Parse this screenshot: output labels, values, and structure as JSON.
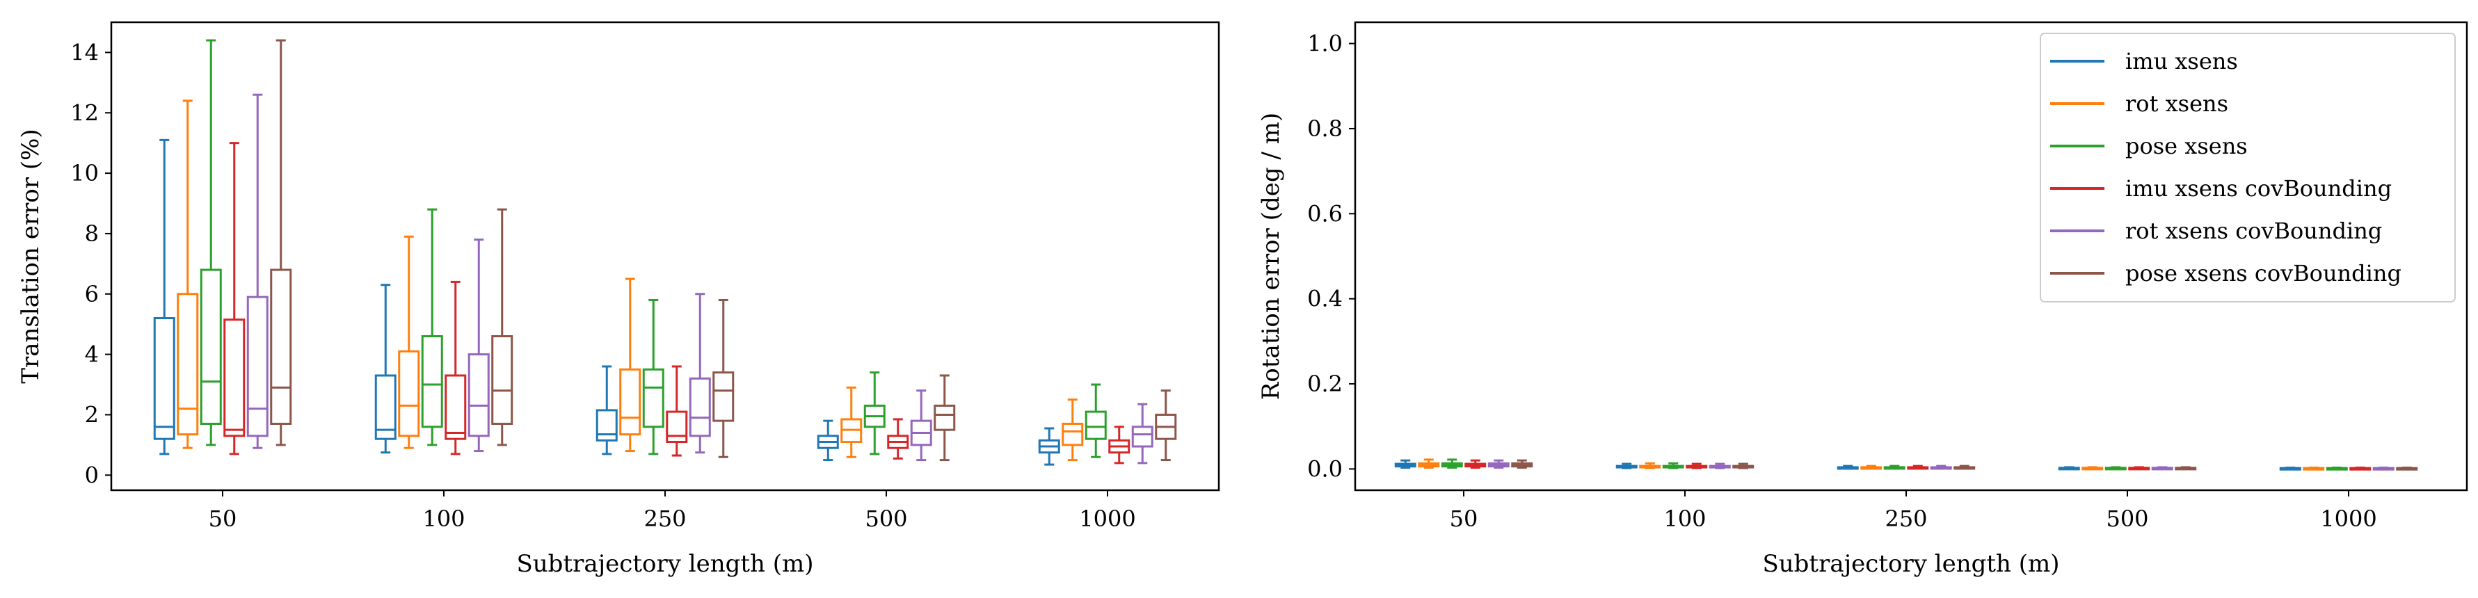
{
  "colors": {
    "imu xsens": "#1f77b4",
    "rot xsens": "#ff7f0e",
    "pose xsens": "#2ca02c",
    "imu xsens covBounding": "#d62728",
    "rot xsens covBounding": "#9467bd",
    "pose xsens covBounding": "#8c564b"
  },
  "chart_data": [
    {
      "type": "box",
      "xlabel": "Subtrajectory length (m)",
      "ylabel": "Translation error (%)",
      "ylim": [
        -0.5,
        15
      ],
      "yticks": [
        0,
        2,
        4,
        6,
        8,
        10,
        12,
        14
      ],
      "categories": [
        "50",
        "100",
        "250",
        "500",
        "1000"
      ],
      "grid": false,
      "series": [
        {
          "name": "imu xsens",
          "boxes": [
            {
              "whislo": 0.7,
              "q1": 1.2,
              "med": 1.6,
              "q3": 5.2,
              "whishi": 11.1
            },
            {
              "whislo": 0.75,
              "q1": 1.2,
              "med": 1.5,
              "q3": 3.3,
              "whishi": 6.3
            },
            {
              "whislo": 0.7,
              "q1": 1.15,
              "med": 1.35,
              "q3": 2.15,
              "whishi": 3.6
            },
            {
              "whislo": 0.5,
              "q1": 0.9,
              "med": 1.1,
              "q3": 1.3,
              "whishi": 1.8
            },
            {
              "whislo": 0.35,
              "q1": 0.75,
              "med": 0.95,
              "q3": 1.15,
              "whishi": 1.55
            }
          ]
        },
        {
          "name": "rot xsens",
          "boxes": [
            {
              "whislo": 0.9,
              "q1": 1.35,
              "med": 2.2,
              "q3": 6.0,
              "whishi": 12.4
            },
            {
              "whislo": 0.9,
              "q1": 1.3,
              "med": 2.3,
              "q3": 4.1,
              "whishi": 7.9
            },
            {
              "whislo": 0.8,
              "q1": 1.35,
              "med": 1.9,
              "q3": 3.5,
              "whishi": 6.5
            },
            {
              "whislo": 0.6,
              "q1": 1.1,
              "med": 1.5,
              "q3": 1.85,
              "whishi": 2.9
            },
            {
              "whislo": 0.5,
              "q1": 1.0,
              "med": 1.45,
              "q3": 1.7,
              "whishi": 2.5
            }
          ]
        },
        {
          "name": "pose xsens",
          "boxes": [
            {
              "whislo": 1.0,
              "q1": 1.7,
              "med": 3.1,
              "q3": 6.8,
              "whishi": 14.4
            },
            {
              "whislo": 1.0,
              "q1": 1.6,
              "med": 3.0,
              "q3": 4.6,
              "whishi": 8.8
            },
            {
              "whislo": 0.7,
              "q1": 1.6,
              "med": 2.9,
              "q3": 3.5,
              "whishi": 5.8
            },
            {
              "whislo": 0.7,
              "q1": 1.6,
              "med": 1.95,
              "q3": 2.3,
              "whishi": 3.4
            },
            {
              "whislo": 0.6,
              "q1": 1.2,
              "med": 1.6,
              "q3": 2.1,
              "whishi": 3.0
            }
          ]
        },
        {
          "name": "imu xsens covBounding",
          "boxes": [
            {
              "whislo": 0.7,
              "q1": 1.3,
              "med": 1.5,
              "q3": 5.15,
              "whishi": 11.0
            },
            {
              "whislo": 0.7,
              "q1": 1.2,
              "med": 1.4,
              "q3": 3.3,
              "whishi": 6.4
            },
            {
              "whislo": 0.65,
              "q1": 1.1,
              "med": 1.3,
              "q3": 2.1,
              "whishi": 3.6
            },
            {
              "whislo": 0.55,
              "q1": 0.9,
              "med": 1.1,
              "q3": 1.3,
              "whishi": 1.85
            },
            {
              "whislo": 0.4,
              "q1": 0.75,
              "med": 0.95,
              "q3": 1.15,
              "whishi": 1.6
            }
          ]
        },
        {
          "name": "rot xsens covBounding",
          "boxes": [
            {
              "whislo": 0.9,
              "q1": 1.3,
              "med": 2.2,
              "q3": 5.9,
              "whishi": 12.6
            },
            {
              "whislo": 0.8,
              "q1": 1.3,
              "med": 2.3,
              "q3": 4.0,
              "whishi": 7.8
            },
            {
              "whislo": 0.75,
              "q1": 1.3,
              "med": 1.9,
              "q3": 3.2,
              "whishi": 6.0
            },
            {
              "whislo": 0.5,
              "q1": 1.0,
              "med": 1.4,
              "q3": 1.8,
              "whishi": 2.8
            },
            {
              "whislo": 0.4,
              "q1": 0.95,
              "med": 1.35,
              "q3": 1.6,
              "whishi": 2.35
            }
          ]
        },
        {
          "name": "pose xsens covBounding",
          "boxes": [
            {
              "whislo": 1.0,
              "q1": 1.7,
              "med": 2.9,
              "q3": 6.8,
              "whishi": 14.4
            },
            {
              "whislo": 1.0,
              "q1": 1.7,
              "med": 2.8,
              "q3": 4.6,
              "whishi": 8.8
            },
            {
              "whislo": 0.6,
              "q1": 1.8,
              "med": 2.8,
              "q3": 3.4,
              "whishi": 5.8
            },
            {
              "whislo": 0.5,
              "q1": 1.5,
              "med": 2.0,
              "q3": 2.3,
              "whishi": 3.3
            },
            {
              "whislo": 0.5,
              "q1": 1.2,
              "med": 1.6,
              "q3": 2.0,
              "whishi": 2.8
            }
          ]
        }
      ]
    },
    {
      "type": "box",
      "xlabel": "Subtrajectory length (m)",
      "ylabel": "Rotation error (deg / m)",
      "ylim": [
        -0.05,
        1.05
      ],
      "yticks": [
        "0.0",
        "0.2",
        "0.4",
        "0.6",
        "0.8",
        "1.0"
      ],
      "categories": [
        "50",
        "100",
        "250",
        "500",
        "1000"
      ],
      "grid": false,
      "legend": "top-right",
      "legend_entries": [
        "imu xsens",
        "rot xsens",
        "pose xsens",
        "imu xsens covBounding",
        "rot xsens covBounding",
        "pose xsens covBounding"
      ],
      "series": [
        {
          "name": "imu xsens",
          "boxes": [
            {
              "whislo": 0.003,
              "q1": 0.006,
              "med": 0.008,
              "q3": 0.012,
              "whishi": 0.02
            },
            {
              "whislo": 0.002,
              "q1": 0.004,
              "med": 0.005,
              "q3": 0.007,
              "whishi": 0.012
            },
            {
              "whislo": 0.001,
              "q1": 0.002,
              "med": 0.003,
              "q3": 0.004,
              "whishi": 0.007
            },
            {
              "whislo": 0.001,
              "q1": 0.0015,
              "med": 0.002,
              "q3": 0.0025,
              "whishi": 0.004
            },
            {
              "whislo": 0.0005,
              "q1": 0.001,
              "med": 0.0015,
              "q3": 0.002,
              "whishi": 0.003
            }
          ]
        },
        {
          "name": "rot xsens",
          "boxes": [
            {
              "whislo": 0.003,
              "q1": 0.006,
              "med": 0.008,
              "q3": 0.013,
              "whishi": 0.022
            },
            {
              "whislo": 0.002,
              "q1": 0.004,
              "med": 0.005,
              "q3": 0.007,
              "whishi": 0.013
            },
            {
              "whislo": 0.001,
              "q1": 0.002,
              "med": 0.003,
              "q3": 0.004,
              "whishi": 0.007
            },
            {
              "whislo": 0.001,
              "q1": 0.0015,
              "med": 0.002,
              "q3": 0.0025,
              "whishi": 0.004
            },
            {
              "whislo": 0.0005,
              "q1": 0.001,
              "med": 0.0015,
              "q3": 0.002,
              "whishi": 0.003
            }
          ]
        },
        {
          "name": "pose xsens",
          "boxes": [
            {
              "whislo": 0.003,
              "q1": 0.006,
              "med": 0.008,
              "q3": 0.013,
              "whishi": 0.022
            },
            {
              "whislo": 0.002,
              "q1": 0.004,
              "med": 0.005,
              "q3": 0.007,
              "whishi": 0.013
            },
            {
              "whislo": 0.001,
              "q1": 0.002,
              "med": 0.003,
              "q3": 0.004,
              "whishi": 0.007
            },
            {
              "whislo": 0.001,
              "q1": 0.0015,
              "med": 0.002,
              "q3": 0.0025,
              "whishi": 0.004
            },
            {
              "whislo": 0.0005,
              "q1": 0.001,
              "med": 0.0015,
              "q3": 0.002,
              "whishi": 0.003
            }
          ]
        },
        {
          "name": "imu xsens covBounding",
          "boxes": [
            {
              "whislo": 0.003,
              "q1": 0.006,
              "med": 0.008,
              "q3": 0.012,
              "whishi": 0.02
            },
            {
              "whislo": 0.002,
              "q1": 0.004,
              "med": 0.005,
              "q3": 0.007,
              "whishi": 0.012
            },
            {
              "whislo": 0.001,
              "q1": 0.002,
              "med": 0.003,
              "q3": 0.004,
              "whishi": 0.007
            },
            {
              "whislo": 0.001,
              "q1": 0.0015,
              "med": 0.002,
              "q3": 0.0025,
              "whishi": 0.004
            },
            {
              "whislo": 0.0005,
              "q1": 0.001,
              "med": 0.0015,
              "q3": 0.002,
              "whishi": 0.003
            }
          ]
        },
        {
          "name": "rot xsens covBounding",
          "boxes": [
            {
              "whislo": 0.003,
              "q1": 0.006,
              "med": 0.008,
              "q3": 0.013,
              "whishi": 0.02
            },
            {
              "whislo": 0.002,
              "q1": 0.004,
              "med": 0.005,
              "q3": 0.007,
              "whishi": 0.012
            },
            {
              "whislo": 0.001,
              "q1": 0.002,
              "med": 0.003,
              "q3": 0.004,
              "whishi": 0.007
            },
            {
              "whislo": 0.001,
              "q1": 0.0015,
              "med": 0.002,
              "q3": 0.0025,
              "whishi": 0.004
            },
            {
              "whislo": 0.0005,
              "q1": 0.001,
              "med": 0.0015,
              "q3": 0.002,
              "whishi": 0.003
            }
          ]
        },
        {
          "name": "pose xsens covBounding",
          "boxes": [
            {
              "whislo": 0.003,
              "q1": 0.006,
              "med": 0.008,
              "q3": 0.013,
              "whishi": 0.02
            },
            {
              "whislo": 0.002,
              "q1": 0.004,
              "med": 0.005,
              "q3": 0.007,
              "whishi": 0.012
            },
            {
              "whislo": 0.001,
              "q1": 0.002,
              "med": 0.003,
              "q3": 0.004,
              "whishi": 0.007
            },
            {
              "whislo": 0.001,
              "q1": 0.0015,
              "med": 0.002,
              "q3": 0.0025,
              "whishi": 0.004
            },
            {
              "whislo": 0.0005,
              "q1": 0.001,
              "med": 0.0015,
              "q3": 0.002,
              "whishi": 0.003
            }
          ]
        }
      ]
    }
  ]
}
